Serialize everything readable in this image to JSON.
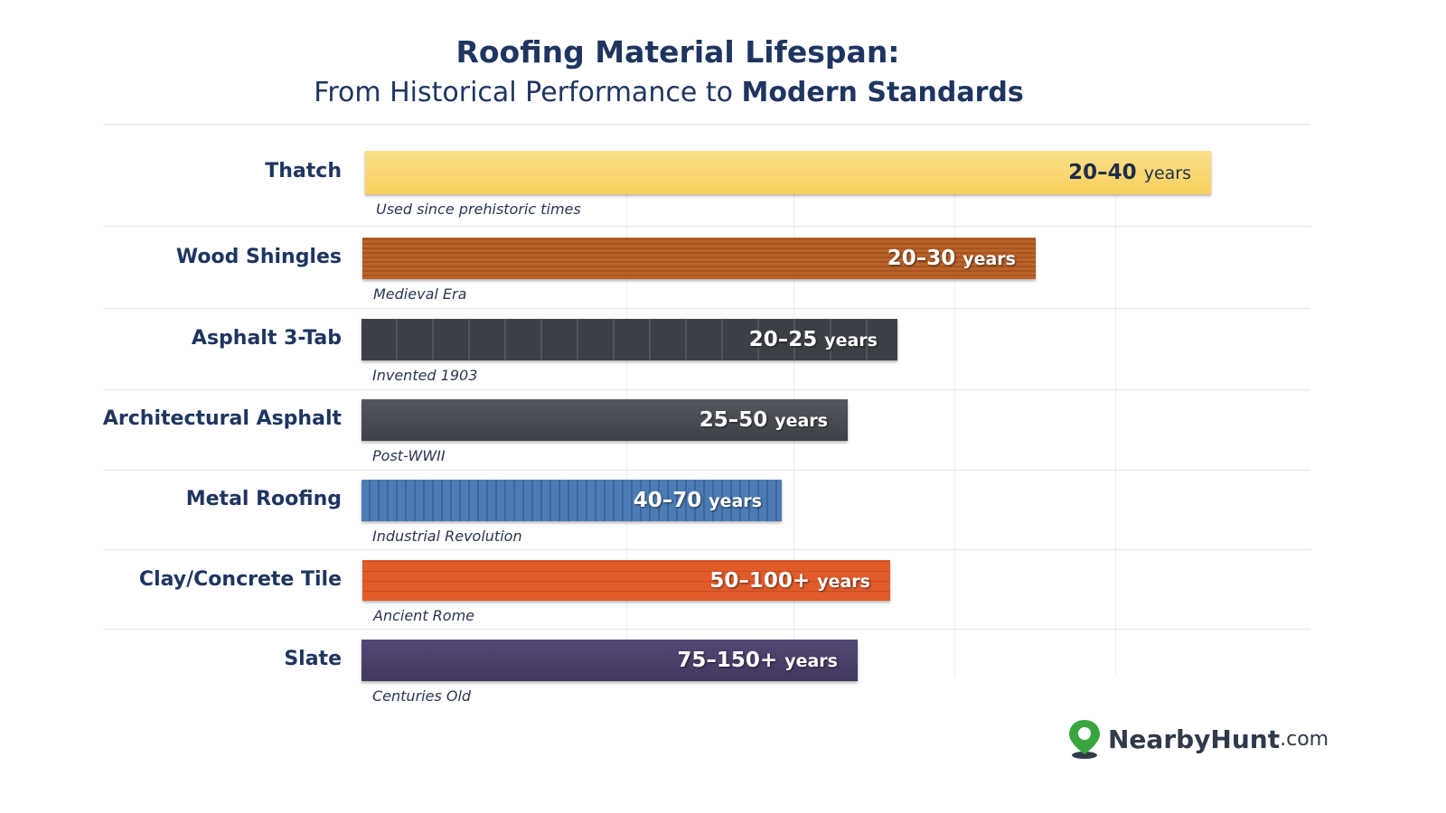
{
  "header": {
    "title": "Roofing Material Lifespan:",
    "subtitle_lead": "From Historical Performance to ",
    "subtitle_emphasis": "Modern Standards"
  },
  "rows": [
    {
      "label": "Thatch",
      "range": "20–40",
      "unit": "years",
      "note": "Used since prehistoric times"
    },
    {
      "label": "Wood Shingles",
      "range": "20–30",
      "unit": "years",
      "note": "Medieval Era"
    },
    {
      "label": "Asphalt 3-Tab",
      "range": "20–25",
      "unit": "years",
      "note": "Invented 1903"
    },
    {
      "label": "Architectural Asphalt",
      "range": "25–50",
      "unit": "years",
      "note": "Post-WWII"
    },
    {
      "label": "Metal Roofing",
      "range": "40–70",
      "unit": "years",
      "note": "Industrial Revolution"
    },
    {
      "label": "Clay/Concrete Tile",
      "range": "50–100+",
      "unit": "years",
      "note": "Ancient Rome"
    },
    {
      "label": "Slate",
      "range": "75–150+",
      "unit": "years",
      "note": "Centuries Old"
    }
  ],
  "logo": {
    "part1": "Nearby",
    "part2": "Hunt",
    "part3": ".com"
  }
}
